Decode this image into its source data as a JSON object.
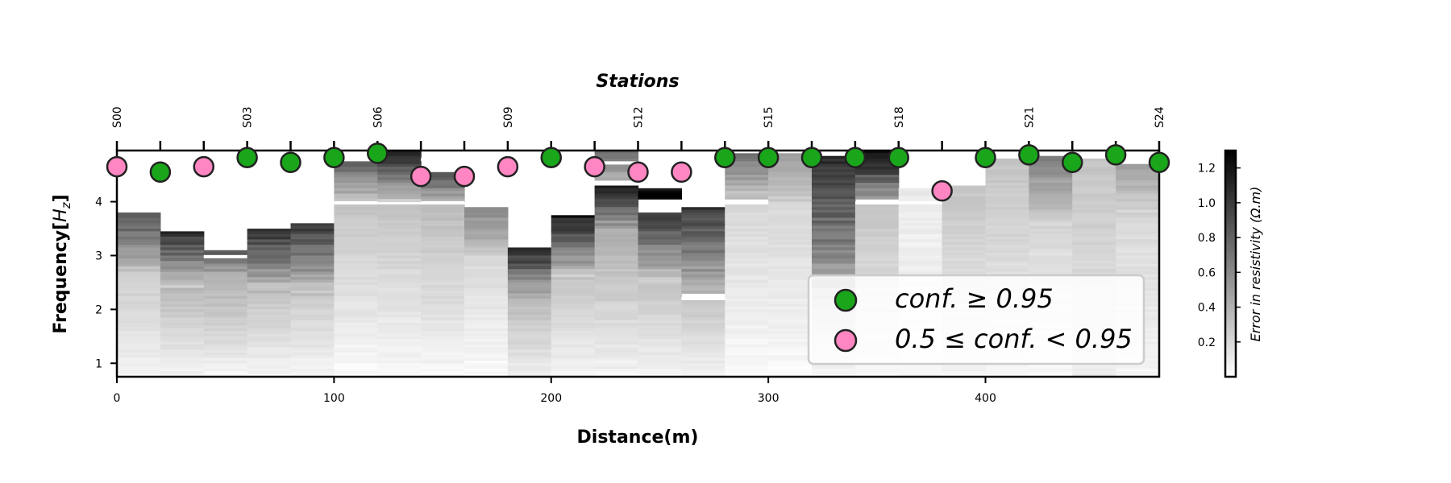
{
  "chart_data": {
    "type": "heatmap",
    "title": "Stations",
    "xlabel": "Distance(m)",
    "ylabel": "Frequency[$H_z$]",
    "ylabel_parts": [
      "Frequency[",
      "H",
      "z",
      "]"
    ],
    "xlim": [
      0,
      480
    ],
    "ylim": [
      0.75,
      4.95
    ],
    "x_ticks": [
      0,
      100,
      200,
      300,
      400
    ],
    "y_ticks": [
      1,
      2,
      3,
      4
    ],
    "stations": [
      "S00",
      "S03",
      "S06",
      "S09",
      "S12",
      "S15",
      "S18",
      "S21",
      "S24"
    ],
    "station_positions": [
      0,
      60,
      120,
      180,
      240,
      300,
      360,
      420,
      480
    ],
    "top_ticks": [
      0,
      20,
      40,
      60,
      80,
      100,
      120,
      140,
      160,
      180,
      200,
      220,
      240,
      260,
      280,
      300,
      320,
      340,
      360,
      380,
      400,
      420,
      440,
      460,
      480
    ],
    "colorbar": {
      "label": "Error in resistivity (Ω.m)",
      "ticks": [
        "0.2",
        "0.4",
        "0.6",
        "0.8",
        "1.0",
        "1.2"
      ],
      "tick_values": [
        0.2,
        0.4,
        0.6,
        0.8,
        1.0,
        1.2
      ],
      "range": [
        0,
        1.3
      ],
      "colormap": "greys"
    },
    "columns": [
      {
        "x": 0,
        "top": 3.8,
        "bands": [
          [
            3.8,
            2.6,
            0.9,
            0.25
          ],
          [
            2.6,
            0.75,
            0.25,
            0.05
          ]
        ]
      },
      {
        "x": 20,
        "top": 3.45,
        "bands": [
          [
            3.45,
            2.4,
            1.05,
            0.3
          ],
          [
            2.4,
            0.75,
            0.35,
            0.05
          ]
        ]
      },
      {
        "x": 40,
        "top": 3.1,
        "bands": [
          [
            3.1,
            2.6,
            0.9,
            0.4
          ],
          [
            2.6,
            0.75,
            0.4,
            0.05
          ]
        ]
      },
      {
        "x": 60,
        "top": 3.5,
        "bands": [
          [
            3.5,
            2.3,
            1.05,
            0.3
          ],
          [
            2.3,
            0.75,
            0.3,
            0.05
          ]
        ]
      },
      {
        "x": 80,
        "top": 3.6,
        "bands": [
          [
            3.6,
            2.2,
            1.0,
            0.25
          ],
          [
            2.2,
            0.75,
            0.25,
            0.05
          ]
        ]
      },
      {
        "x": 100,
        "top": 4.75,
        "bands": [
          [
            4.75,
            4.0,
            0.8,
            0.3
          ],
          [
            3.95,
            0.75,
            0.3,
            0.02
          ]
        ]
      },
      {
        "x": 120,
        "top": 4.95,
        "bands": [
          [
            4.95,
            4.0,
            1.1,
            0.3
          ],
          [
            3.95,
            0.75,
            0.3,
            0.03
          ]
        ]
      },
      {
        "x": 140,
        "top": 4.6,
        "bands": [
          [
            4.55,
            4.0,
            0.9,
            0.4
          ],
          [
            3.95,
            0.75,
            0.35,
            0.03
          ]
        ]
      },
      {
        "x": 160,
        "top": 3.9,
        "bands": [
          [
            3.9,
            3.0,
            0.6,
            0.3
          ],
          [
            3.0,
            0.75,
            0.2,
            0.02
          ]
        ]
      },
      {
        "x": 180,
        "top": 3.15,
        "bands": [
          [
            3.15,
            2.2,
            1.1,
            0.35
          ],
          [
            2.2,
            0.75,
            0.35,
            0.08
          ]
        ]
      },
      {
        "x": 200,
        "top": 3.75,
        "bands": [
          [
            3.75,
            2.6,
            1.15,
            0.3
          ],
          [
            2.6,
            0.75,
            0.3,
            0.05
          ]
        ]
      },
      {
        "x": 220,
        "top": 4.95,
        "bands": [
          [
            4.95,
            4.4,
            0.7,
            0.4
          ],
          [
            4.3,
            3.4,
            1.1,
            0.4
          ],
          [
            3.4,
            0.75,
            0.4,
            0.05
          ]
        ]
      },
      {
        "x": 240,
        "top": 4.25,
        "bands": [
          [
            4.25,
            4.05,
            1.25,
            1.25
          ],
          [
            3.8,
            2.5,
            1.0,
            0.3
          ],
          [
            2.5,
            0.75,
            0.3,
            0.05
          ]
        ]
      },
      {
        "x": 260,
        "top": 3.9,
        "bands": [
          [
            3.9,
            2.3,
            1.0,
            0.35
          ],
          [
            2.2,
            0.75,
            0.3,
            0.06
          ]
        ]
      },
      {
        "x": 280,
        "top": 4.9,
        "bands": [
          [
            4.9,
            4.05,
            0.7,
            0.3
          ],
          [
            3.95,
            0.75,
            0.2,
            0.02
          ]
        ]
      },
      {
        "x": 300,
        "top": 4.9,
        "bands": [
          [
            4.9,
            4.0,
            0.5,
            0.25
          ],
          [
            4.0,
            0.75,
            0.2,
            0.02
          ]
        ]
      },
      {
        "x": 320,
        "top": 4.85,
        "bands": [
          [
            4.85,
            2.2,
            1.05,
            0.4
          ],
          [
            2.2,
            0.75,
            0.3,
            0.05
          ]
        ]
      },
      {
        "x": 340,
        "top": 4.95,
        "bands": [
          [
            4.95,
            4.05,
            1.25,
            0.5
          ],
          [
            3.95,
            0.75,
            0.3,
            0.05
          ]
        ]
      },
      {
        "x": 360,
        "top": 4.25,
        "bands": [
          [
            4.25,
            0.75,
            0.1,
            0.05
          ]
        ]
      },
      {
        "x": 380,
        "top": 4.3,
        "bands": [
          [
            4.3,
            0.75,
            0.3,
            0.05
          ]
        ]
      },
      {
        "x": 400,
        "top": 4.8,
        "bands": [
          [
            4.8,
            0.75,
            0.3,
            0.05
          ]
        ]
      },
      {
        "x": 420,
        "top": 4.85,
        "bands": [
          [
            4.85,
            3.5,
            0.65,
            0.2
          ],
          [
            3.5,
            0.75,
            0.2,
            0.03
          ]
        ]
      },
      {
        "x": 440,
        "top": 4.8,
        "bands": [
          [
            4.8,
            0.75,
            0.3,
            0.1
          ]
        ]
      },
      {
        "x": 460,
        "top": 4.7,
        "bands": [
          [
            4.7,
            3.7,
            0.5,
            0.2
          ],
          [
            3.7,
            0.75,
            0.2,
            0.05
          ]
        ]
      }
    ],
    "points": [
      {
        "x": 0,
        "y": 4.65,
        "group": "mid"
      },
      {
        "x": 20,
        "y": 4.55,
        "group": "high"
      },
      {
        "x": 40,
        "y": 4.65,
        "group": "mid"
      },
      {
        "x": 60,
        "y": 4.82,
        "group": "high"
      },
      {
        "x": 80,
        "y": 4.73,
        "group": "high"
      },
      {
        "x": 100,
        "y": 4.82,
        "group": "high"
      },
      {
        "x": 120,
        "y": 4.9,
        "group": "high"
      },
      {
        "x": 140,
        "y": 4.47,
        "group": "mid"
      },
      {
        "x": 160,
        "y": 4.47,
        "group": "mid"
      },
      {
        "x": 180,
        "y": 4.65,
        "group": "mid"
      },
      {
        "x": 200,
        "y": 4.82,
        "group": "high"
      },
      {
        "x": 220,
        "y": 4.65,
        "group": "mid"
      },
      {
        "x": 240,
        "y": 4.55,
        "group": "mid"
      },
      {
        "x": 260,
        "y": 4.55,
        "group": "mid"
      },
      {
        "x": 280,
        "y": 4.82,
        "group": "high"
      },
      {
        "x": 300,
        "y": 4.82,
        "group": "high"
      },
      {
        "x": 320,
        "y": 4.82,
        "group": "high"
      },
      {
        "x": 340,
        "y": 4.82,
        "group": "high"
      },
      {
        "x": 360,
        "y": 4.82,
        "group": "high"
      },
      {
        "x": 380,
        "y": 4.2,
        "group": "mid"
      },
      {
        "x": 400,
        "y": 4.82,
        "group": "high"
      },
      {
        "x": 420,
        "y": 4.87,
        "group": "high"
      },
      {
        "x": 440,
        "y": 4.73,
        "group": "high"
      },
      {
        "x": 460,
        "y": 4.87,
        "group": "high"
      },
      {
        "x": 480,
        "y": 4.73,
        "group": "high"
      }
    ],
    "legend": {
      "placement": "lower right",
      "entries": [
        {
          "group": "high",
          "text": "conf. ≥ 0.95",
          "color": "#1aa61a"
        },
        {
          "group": "mid",
          "text": "0.5 ≤ conf. < 0.95",
          "color": "#ff86c2"
        }
      ]
    },
    "colors": {
      "high": "#1aa61a",
      "mid": "#ff86c2",
      "edge": "#222222",
      "light": "#f5f5f5",
      "dark": "#111111"
    }
  }
}
